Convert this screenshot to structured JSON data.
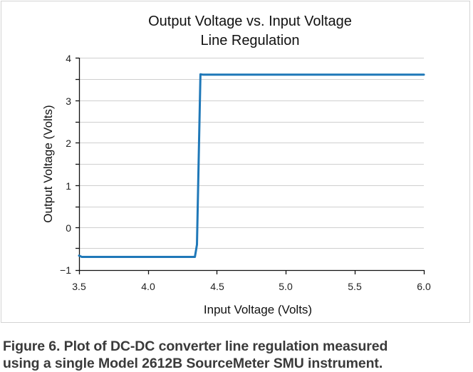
{
  "chart_data": {
    "type": "line",
    "title": "Output Voltage vs. Input Voltage",
    "subtitle": "Line Regulation",
    "xlabel": "Input Voltage (Volts)",
    "ylabel": "Output Voltage (Volts)",
    "xlim": [
      3.5,
      6.0
    ],
    "ylim": [
      -1,
      4
    ],
    "x_ticks": [
      "3.5",
      "4.0",
      "4.5",
      "5.0",
      "5.5",
      "6.0"
    ],
    "y_ticks": [
      "4",
      "3",
      "2",
      "1",
      "0",
      "−1"
    ],
    "y_minor_gridlines": [
      3.5,
      2.5,
      1.5,
      0.5,
      -0.5
    ],
    "grid": true,
    "legend": null,
    "series": [
      {
        "name": "Output Voltage",
        "color": "#1f78b8",
        "x": [
          3.5,
          3.52,
          3.7,
          4.0,
          4.3,
          4.34,
          4.355,
          4.37,
          4.38,
          4.4,
          5.0,
          5.5,
          6.0
        ],
        "y": [
          -0.66,
          -0.69,
          -0.69,
          -0.69,
          -0.69,
          -0.69,
          -0.4,
          2.0,
          3.61,
          3.6,
          3.6,
          3.6,
          3.6
        ]
      }
    ]
  },
  "caption": {
    "line1": "Figure 6. Plot of DC-DC converter line regulation measured",
    "line2": "using a single Model 2612B SourceMeter SMU instrument."
  }
}
